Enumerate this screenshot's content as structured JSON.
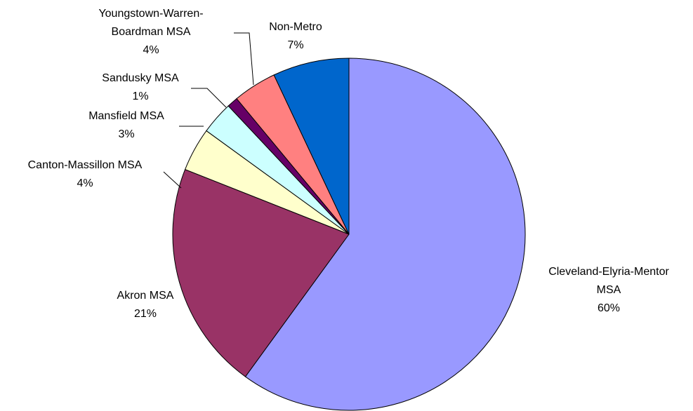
{
  "chart_data": {
    "type": "pie",
    "categories": [
      "Cleveland-Elyria-Mentor MSA",
      "Akron MSA",
      "Canton-Massillon MSA",
      "Mansfield MSA",
      "Sandusky MSA",
      "Youngstown-Warren-Boardman MSA",
      "Non-Metro"
    ],
    "values": [
      60,
      21,
      4,
      3,
      1,
      4,
      7
    ],
    "value_labels": [
      "60%",
      "21%",
      "4%",
      "3%",
      "1%",
      "4%",
      "7%"
    ],
    "colors": [
      "#9999ff",
      "#993366",
      "#ffffcc",
      "#ccffff",
      "#660066",
      "#ff8080",
      "#0066cc"
    ]
  }
}
